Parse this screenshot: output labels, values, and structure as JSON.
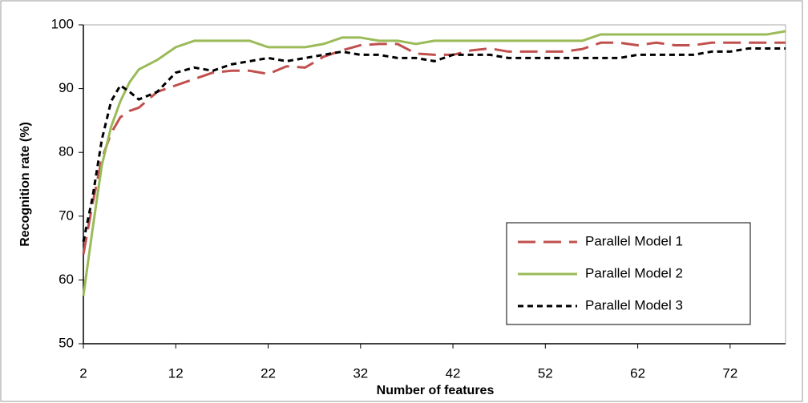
{
  "chart_data": {
    "type": "line",
    "x_label": "Number of features",
    "y_label": "Recognition rate (%)",
    "x": [
      2,
      3,
      4,
      5,
      6,
      7,
      8,
      10,
      12,
      14,
      16,
      18,
      20,
      22,
      24,
      26,
      28,
      30,
      32,
      34,
      36,
      38,
      40,
      42,
      44,
      46,
      48,
      50,
      52,
      54,
      56,
      58,
      60,
      62,
      64,
      66,
      68,
      70,
      72,
      74,
      76,
      78
    ],
    "series": [
      {
        "name": "Parallel Model 1",
        "color": "#c0504d",
        "style": "long-dash",
        "values": [
          64,
          72,
          79,
          83,
          85.5,
          86.5,
          87,
          89.5,
          90.5,
          91.5,
          92.5,
          92.8,
          92.8,
          92.3,
          93.5,
          93.3,
          95,
          96,
          96.8,
          97,
          97,
          95.5,
          95.3,
          95.3,
          96,
          96.3,
          95.8,
          95.8,
          95.8,
          95.8,
          96.2,
          97.2,
          97.2,
          96.8,
          97.2,
          96.8,
          96.8,
          97.2,
          97.2,
          97.2,
          97.2,
          97.2
        ]
      },
      {
        "name": "Parallel Model 2",
        "color": "#9bbb59",
        "style": "solid",
        "values": [
          57.5,
          68,
          78,
          84,
          88,
          91,
          93,
          94.5,
          96.5,
          97.5,
          97.5,
          97.5,
          97.5,
          96.5,
          96.5,
          96.5,
          97,
          98,
          98,
          97.5,
          97.5,
          97,
          97.5,
          97.5,
          97.5,
          97.5,
          97.5,
          97.5,
          97.5,
          97.5,
          97.5,
          98.5,
          98.5,
          98.5,
          98.5,
          98.5,
          98.5,
          98.5,
          98.5,
          98.5,
          98.5,
          99
        ]
      },
      {
        "name": "Parallel Model 3",
        "color": "#000000",
        "style": "short-dash",
        "values": [
          66,
          73,
          82,
          88,
          90.5,
          89.5,
          88.3,
          89.5,
          92.5,
          93.3,
          92.8,
          93.8,
          94.3,
          94.8,
          94.3,
          94.8,
          95.3,
          95.8,
          95.3,
          95.3,
          94.8,
          94.8,
          94.3,
          95.3,
          95.3,
          95.3,
          94.8,
          94.8,
          94.8,
          94.8,
          94.8,
          94.8,
          94.8,
          95.3,
          95.3,
          95.3,
          95.3,
          95.8,
          95.8,
          96.3,
          96.3,
          96.3
        ]
      }
    ],
    "xlim": [
      2,
      78
    ],
    "xticks": [
      2,
      12,
      22,
      32,
      42,
      52,
      62,
      72
    ],
    "ylim": [
      50,
      100
    ],
    "yticks": [
      50,
      60,
      70,
      80,
      90,
      100
    ],
    "legend": "lower-right"
  }
}
